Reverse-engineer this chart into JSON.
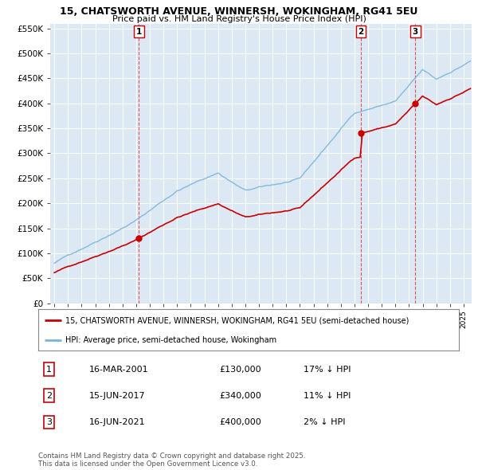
{
  "title": "15, CHATSWORTH AVENUE, WINNERSH, WOKINGHAM, RG41 5EU",
  "subtitle": "Price paid vs. HM Land Registry's House Price Index (HPI)",
  "property_label": "15, CHATSWORTH AVENUE, WINNERSH, WOKINGHAM, RG41 5EU (semi-detached house)",
  "hpi_label": "HPI: Average price, semi-detached house, Wokingham",
  "property_color": "#cc0000",
  "hpi_color": "#7ab4d8",
  "vline_color": "#dd4444",
  "purchases": [
    {
      "date": 2001.21,
      "price": 130000,
      "label": "1"
    },
    {
      "date": 2017.46,
      "price": 340000,
      "label": "2"
    },
    {
      "date": 2021.46,
      "price": 400000,
      "label": "3"
    }
  ],
  "purchase_table": [
    {
      "num": "1",
      "date": "16-MAR-2001",
      "price": "£130,000",
      "note": "17% ↓ HPI"
    },
    {
      "num": "2",
      "date": "15-JUN-2017",
      "price": "£340,000",
      "note": "11% ↓ HPI"
    },
    {
      "num": "3",
      "date": "16-JUN-2021",
      "price": "£400,000",
      "note": "2% ↓ HPI"
    }
  ],
  "ylim": [
    0,
    560000
  ],
  "yticks": [
    0,
    50000,
    100000,
    150000,
    200000,
    250000,
    300000,
    350000,
    400000,
    450000,
    500000,
    550000
  ],
  "footer": "Contains HM Land Registry data © Crown copyright and database right 2025.\nThis data is licensed under the Open Government Licence v3.0.",
  "chart_bg": "#dce9f5",
  "fig_bg": "#ffffff",
  "grid_color": "#ffffff"
}
